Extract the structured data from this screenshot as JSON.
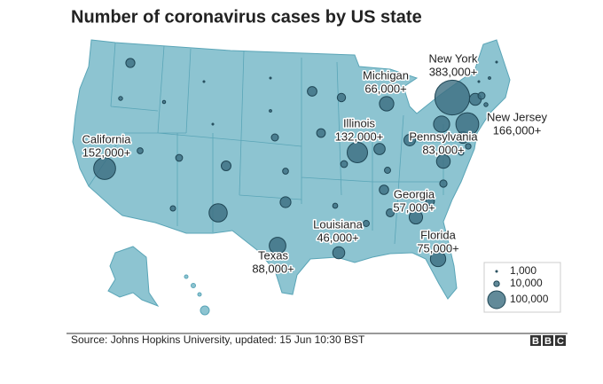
{
  "title": "Number of coronavirus cases by US state",
  "source": "Source: Johns Hopkins University, updated: 15 Jun 10:30 BST",
  "logo": [
    "B",
    "B",
    "C"
  ],
  "labeled_states": [
    {
      "name": "New York",
      "value": 383000,
      "label": "383,000+"
    },
    {
      "name": "New Jersey",
      "value": 166000,
      "label": "166,000+"
    },
    {
      "name": "California",
      "value": 152000,
      "label": "152,000+"
    },
    {
      "name": "Illinois",
      "value": 132000,
      "label": "132,000+"
    },
    {
      "name": "Texas",
      "value": 88000,
      "label": "88,000+"
    },
    {
      "name": "Pennsylvania",
      "value": 83000,
      "label": "83,000+"
    },
    {
      "name": "Florida",
      "value": 75000,
      "label": "75,000+"
    },
    {
      "name": "Michigan",
      "value": 66000,
      "label": "66,000+"
    },
    {
      "name": "Georgia",
      "value": 57000,
      "label": "57,000+"
    },
    {
      "name": "Louisiana",
      "value": 46000,
      "label": "46,000+"
    }
  ],
  "other_states": [
    26000,
    5000,
    3000,
    500,
    300,
    29000,
    22000,
    2000,
    1000,
    16000,
    24000,
    11000,
    15000,
    30000,
    11000,
    15000,
    40000,
    42000,
    12000,
    28000,
    60000,
    44000,
    17000,
    24000,
    20000,
    12000,
    8000,
    37000,
    9000,
    105000,
    45000,
    16000,
    5000,
    2000,
    600,
    700,
    10000,
    9000
  ],
  "legend": [
    {
      "value": 1000,
      "label": "1,000"
    },
    {
      "value": 10000,
      "label": "10,000"
    },
    {
      "value": 100000,
      "label": "100,000"
    }
  ]
}
